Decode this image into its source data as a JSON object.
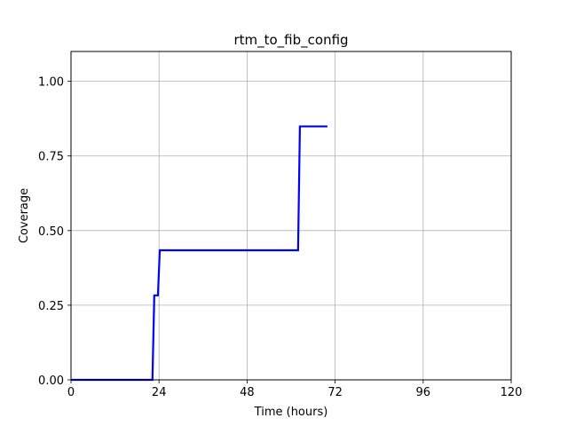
{
  "chart_data": {
    "type": "line",
    "title": "rtm_to_fib_config",
    "xlabel": "Time (hours)",
    "ylabel": "Coverage",
    "xlim": [
      0,
      120
    ],
    "ylim": [
      0,
      1.1
    ],
    "xticks": [
      0,
      24,
      48,
      72,
      96,
      120
    ],
    "xtick_labels": [
      "0",
      "24",
      "48",
      "72",
      "96",
      "120"
    ],
    "yticks": [
      0,
      0.25,
      0.5,
      0.75,
      1.0
    ],
    "ytick_labels": [
      "0.00",
      "0.25",
      "0.50",
      "0.75",
      "1.00"
    ],
    "grid": true,
    "series": [
      {
        "color": "#0000ff",
        "x": [
          0,
          22.2,
          22.7,
          23.7,
          24.2,
          61.9,
          62.4,
          69.9
        ],
        "y": [
          0,
          0,
          0.283,
          0.283,
          0.434,
          0.434,
          0.849,
          0.849
        ]
      }
    ]
  }
}
